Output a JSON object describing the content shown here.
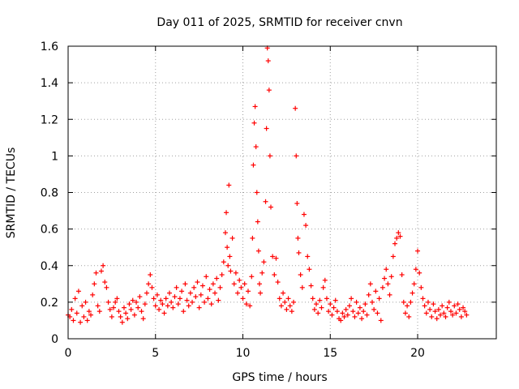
{
  "chart_data": {
    "type": "scatter",
    "title": "Day 011 of 2025, SRMTID for receiver cnvn",
    "xlabel": "GPS time / hours",
    "ylabel": "SRMTID / TECUs",
    "xlim": [
      0,
      24.5
    ],
    "ylim": [
      0,
      1.6
    ],
    "xticks": [
      0,
      5,
      10,
      15,
      20
    ],
    "xtick_labels": [
      "0",
      "5",
      "10",
      "15",
      "20"
    ],
    "yticks": [
      0,
      0.2,
      0.4,
      0.6,
      0.8,
      1.0,
      1.2,
      1.4,
      1.6
    ],
    "ytick_labels": [
      "0",
      "0.2",
      "0.4",
      "0.6",
      "0.8",
      "1",
      "1.2",
      "1.4",
      "1.6"
    ],
    "grid": true,
    "marker": "+",
    "color": "#ff0000",
    "series": [
      {
        "name": "SRMTID",
        "points": [
          [
            0.0,
            0.13
          ],
          [
            0.1,
            0.12
          ],
          [
            0.2,
            0.16
          ],
          [
            0.3,
            0.1
          ],
          [
            0.4,
            0.22
          ],
          [
            0.5,
            0.14
          ],
          [
            0.6,
            0.26
          ],
          [
            0.7,
            0.09
          ],
          [
            0.8,
            0.18
          ],
          [
            0.9,
            0.12
          ],
          [
            1.0,
            0.2
          ],
          [
            1.1,
            0.1
          ],
          [
            1.2,
            0.15
          ],
          [
            1.3,
            0.13
          ],
          [
            1.4,
            0.24
          ],
          [
            1.5,
            0.3
          ],
          [
            1.6,
            0.36
          ],
          [
            1.7,
            0.18
          ],
          [
            1.8,
            0.15
          ],
          [
            1.9,
            0.37
          ],
          [
            2.0,
            0.4
          ],
          [
            2.1,
            0.31
          ],
          [
            2.2,
            0.28
          ],
          [
            2.3,
            0.2
          ],
          [
            2.4,
            0.16
          ],
          [
            2.5,
            0.12
          ],
          [
            2.6,
            0.17
          ],
          [
            2.7,
            0.2
          ],
          [
            2.8,
            0.22
          ],
          [
            2.9,
            0.15
          ],
          [
            3.0,
            0.12
          ],
          [
            3.1,
            0.09
          ],
          [
            3.2,
            0.17
          ],
          [
            3.3,
            0.14
          ],
          [
            3.4,
            0.11
          ],
          [
            3.5,
            0.19
          ],
          [
            3.6,
            0.16
          ],
          [
            3.7,
            0.21
          ],
          [
            3.8,
            0.13
          ],
          [
            3.9,
            0.2
          ],
          [
            4.0,
            0.17
          ],
          [
            4.1,
            0.23
          ],
          [
            4.2,
            0.15
          ],
          [
            4.3,
            0.11
          ],
          [
            4.4,
            0.19
          ],
          [
            4.5,
            0.25
          ],
          [
            4.6,
            0.3
          ],
          [
            4.7,
            0.35
          ],
          [
            4.8,
            0.28
          ],
          [
            4.9,
            0.22
          ],
          [
            5.0,
            0.18
          ],
          [
            5.1,
            0.24
          ],
          [
            5.2,
            0.16
          ],
          [
            5.3,
            0.21
          ],
          [
            5.4,
            0.19
          ],
          [
            5.5,
            0.14
          ],
          [
            5.6,
            0.22
          ],
          [
            5.7,
            0.18
          ],
          [
            5.8,
            0.25
          ],
          [
            5.9,
            0.2
          ],
          [
            6.0,
            0.17
          ],
          [
            6.1,
            0.23
          ],
          [
            6.2,
            0.28
          ],
          [
            6.3,
            0.19
          ],
          [
            6.4,
            0.22
          ],
          [
            6.5,
            0.26
          ],
          [
            6.6,
            0.15
          ],
          [
            6.7,
            0.3
          ],
          [
            6.8,
            0.21
          ],
          [
            6.9,
            0.18
          ],
          [
            7.0,
            0.25
          ],
          [
            7.1,
            0.2
          ],
          [
            7.2,
            0.28
          ],
          [
            7.3,
            0.23
          ],
          [
            7.4,
            0.31
          ],
          [
            7.5,
            0.17
          ],
          [
            7.6,
            0.24
          ],
          [
            7.7,
            0.29
          ],
          [
            7.8,
            0.2
          ],
          [
            7.9,
            0.34
          ],
          [
            8.0,
            0.22
          ],
          [
            8.1,
            0.27
          ],
          [
            8.2,
            0.19
          ],
          [
            8.3,
            0.3
          ],
          [
            8.4,
            0.25
          ],
          [
            8.5,
            0.33
          ],
          [
            8.6,
            0.21
          ],
          [
            8.7,
            0.28
          ],
          [
            8.8,
            0.35
          ],
          [
            8.9,
            0.42
          ],
          [
            9.0,
            0.58
          ],
          [
            9.05,
            0.69
          ],
          [
            9.1,
            0.5
          ],
          [
            9.15,
            0.4
          ],
          [
            9.2,
            0.84
          ],
          [
            9.25,
            0.45
          ],
          [
            9.3,
            0.37
          ],
          [
            9.4,
            0.55
          ],
          [
            9.5,
            0.3
          ],
          [
            9.6,
            0.36
          ],
          [
            9.7,
            0.25
          ],
          [
            9.8,
            0.32
          ],
          [
            9.9,
            0.28
          ],
          [
            10.0,
            0.22
          ],
          [
            10.1,
            0.3
          ],
          [
            10.2,
            0.19
          ],
          [
            10.3,
            0.26
          ],
          [
            10.4,
            0.18
          ],
          [
            10.5,
            0.34
          ],
          [
            10.55,
            0.55
          ],
          [
            10.6,
            0.95
          ],
          [
            10.65,
            1.18
          ],
          [
            10.7,
            1.27
          ],
          [
            10.75,
            1.05
          ],
          [
            10.8,
            0.8
          ],
          [
            10.85,
            0.64
          ],
          [
            10.9,
            0.48
          ],
          [
            10.95,
            0.3
          ],
          [
            11.0,
            0.25
          ],
          [
            11.1,
            0.36
          ],
          [
            11.2,
            0.42
          ],
          [
            11.3,
            0.75
          ],
          [
            11.35,
            1.15
          ],
          [
            11.4,
            1.59
          ],
          [
            11.45,
            1.52
          ],
          [
            11.5,
            1.36
          ],
          [
            11.55,
            1.0
          ],
          [
            11.6,
            0.72
          ],
          [
            11.7,
            0.45
          ],
          [
            11.8,
            0.35
          ],
          [
            11.9,
            0.44
          ],
          [
            12.0,
            0.31
          ],
          [
            12.1,
            0.22
          ],
          [
            12.2,
            0.18
          ],
          [
            12.3,
            0.25
          ],
          [
            12.4,
            0.2
          ],
          [
            12.5,
            0.16
          ],
          [
            12.6,
            0.22
          ],
          [
            12.7,
            0.18
          ],
          [
            12.8,
            0.15
          ],
          [
            12.9,
            0.2
          ],
          [
            13.0,
            1.26
          ],
          [
            13.05,
            1.0
          ],
          [
            13.1,
            0.74
          ],
          [
            13.15,
            0.55
          ],
          [
            13.2,
            0.47
          ],
          [
            13.3,
            0.35
          ],
          [
            13.4,
            0.28
          ],
          [
            13.5,
            0.68
          ],
          [
            13.6,
            0.62
          ],
          [
            13.7,
            0.45
          ],
          [
            13.8,
            0.38
          ],
          [
            13.9,
            0.29
          ],
          [
            14.0,
            0.22
          ],
          [
            14.1,
            0.16
          ],
          [
            14.2,
            0.19
          ],
          [
            14.3,
            0.14
          ],
          [
            14.4,
            0.21
          ],
          [
            14.5,
            0.17
          ],
          [
            14.6,
            0.28
          ],
          [
            14.7,
            0.32
          ],
          [
            14.8,
            0.22
          ],
          [
            14.9,
            0.15
          ],
          [
            15.0,
            0.19
          ],
          [
            15.1,
            0.13
          ],
          [
            15.2,
            0.17
          ],
          [
            15.3,
            0.21
          ],
          [
            15.4,
            0.15
          ],
          [
            15.5,
            0.11
          ],
          [
            15.6,
            0.1
          ],
          [
            15.7,
            0.14
          ],
          [
            15.8,
            0.12
          ],
          [
            15.9,
            0.16
          ],
          [
            16.0,
            0.13
          ],
          [
            16.1,
            0.18
          ],
          [
            16.2,
            0.22
          ],
          [
            16.3,
            0.15
          ],
          [
            16.4,
            0.12
          ],
          [
            16.5,
            0.2
          ],
          [
            16.6,
            0.14
          ],
          [
            16.7,
            0.17
          ],
          [
            16.8,
            0.11
          ],
          [
            16.9,
            0.15
          ],
          [
            17.0,
            0.19
          ],
          [
            17.1,
            0.13
          ],
          [
            17.2,
            0.24
          ],
          [
            17.3,
            0.3
          ],
          [
            17.4,
            0.2
          ],
          [
            17.5,
            0.16
          ],
          [
            17.6,
            0.26
          ],
          [
            17.7,
            0.14
          ],
          [
            17.8,
            0.22
          ],
          [
            17.9,
            0.1
          ],
          [
            18.0,
            0.28
          ],
          [
            18.1,
            0.33
          ],
          [
            18.2,
            0.38
          ],
          [
            18.3,
            0.3
          ],
          [
            18.4,
            0.24
          ],
          [
            18.5,
            0.34
          ],
          [
            18.6,
            0.45
          ],
          [
            18.7,
            0.52
          ],
          [
            18.8,
            0.55
          ],
          [
            18.9,
            0.58
          ],
          [
            19.0,
            0.56
          ],
          [
            19.1,
            0.35
          ],
          [
            19.2,
            0.2
          ],
          [
            19.3,
            0.14
          ],
          [
            19.4,
            0.18
          ],
          [
            19.5,
            0.12
          ],
          [
            19.6,
            0.2
          ],
          [
            19.7,
            0.25
          ],
          [
            19.8,
            0.3
          ],
          [
            19.9,
            0.38
          ],
          [
            20.0,
            0.48
          ],
          [
            20.1,
            0.36
          ],
          [
            20.2,
            0.28
          ],
          [
            20.3,
            0.22
          ],
          [
            20.4,
            0.18
          ],
          [
            20.5,
            0.14
          ],
          [
            20.6,
            0.2
          ],
          [
            20.7,
            0.16
          ],
          [
            20.8,
            0.12
          ],
          [
            20.9,
            0.19
          ],
          [
            21.0,
            0.15
          ],
          [
            21.1,
            0.11
          ],
          [
            21.2,
            0.16
          ],
          [
            21.3,
            0.13
          ],
          [
            21.4,
            0.18
          ],
          [
            21.5,
            0.14
          ],
          [
            21.6,
            0.12
          ],
          [
            21.7,
            0.17
          ],
          [
            21.8,
            0.2
          ],
          [
            21.9,
            0.15
          ],
          [
            22.0,
            0.13
          ],
          [
            22.1,
            0.18
          ],
          [
            22.2,
            0.14
          ],
          [
            22.3,
            0.19
          ],
          [
            22.4,
            0.16
          ],
          [
            22.5,
            0.12
          ],
          [
            22.6,
            0.17
          ],
          [
            22.7,
            0.15
          ],
          [
            22.8,
            0.13
          ]
        ]
      }
    ]
  }
}
